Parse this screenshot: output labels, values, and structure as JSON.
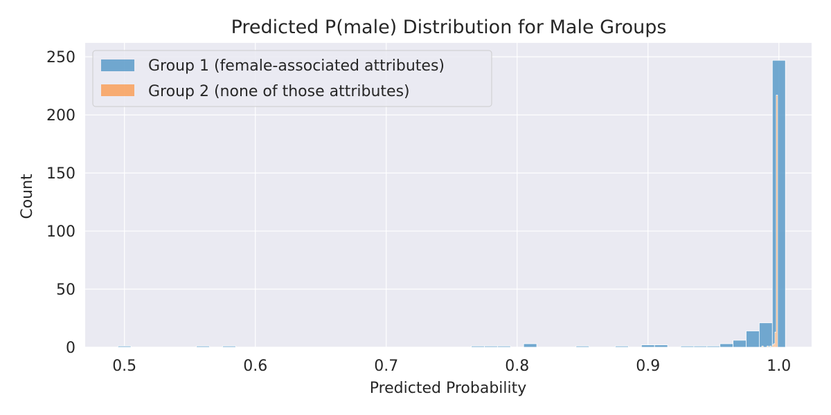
{
  "chart_data": {
    "type": "bar",
    "title": "Predicted P(male) Distribution for Male Groups",
    "xlabel": "Predicted Probability",
    "ylabel": "Count",
    "xlim": [
      0.47,
      1.025
    ],
    "ylim": [
      0,
      262
    ],
    "xticks": [
      0.5,
      0.6,
      0.7,
      0.8,
      0.9,
      1.0
    ],
    "xtick_labels": [
      "0.5",
      "0.6",
      "0.7",
      "0.8",
      "0.9",
      "1.0"
    ],
    "yticks": [
      0,
      50,
      100,
      150,
      200,
      250
    ],
    "ytick_labels": [
      "0",
      "50",
      "100",
      "150",
      "200",
      "250"
    ],
    "grid": true,
    "legend_position": "top-left",
    "series": [
      {
        "name": "Group 1 (female-associated attributes)",
        "color": "#5b9bc9",
        "bin_width": 0.01,
        "bins": [
          {
            "x0": 0.495,
            "count": 1
          },
          {
            "x0": 0.555,
            "count": 1
          },
          {
            "x0": 0.575,
            "count": 1
          },
          {
            "x0": 0.765,
            "count": 1
          },
          {
            "x0": 0.775,
            "count": 1
          },
          {
            "x0": 0.785,
            "count": 1
          },
          {
            "x0": 0.805,
            "count": 3
          },
          {
            "x0": 0.845,
            "count": 1
          },
          {
            "x0": 0.875,
            "count": 1
          },
          {
            "x0": 0.895,
            "count": 2
          },
          {
            "x0": 0.905,
            "count": 2
          },
          {
            "x0": 0.925,
            "count": 1
          },
          {
            "x0": 0.935,
            "count": 1
          },
          {
            "x0": 0.945,
            "count": 1
          },
          {
            "x0": 0.955,
            "count": 3
          },
          {
            "x0": 0.965,
            "count": 6
          },
          {
            "x0": 0.975,
            "count": 14
          },
          {
            "x0": 0.985,
            "count": 21
          },
          {
            "x0": 0.995,
            "count": 247
          }
        ]
      },
      {
        "name": "Group 2 (none of those attributes)",
        "color": "#f9a05a",
        "bin_width": 0.001,
        "bins": [
          {
            "x0": 0.987,
            "count": 1
          },
          {
            "x0": 0.991,
            "count": 1
          },
          {
            "x0": 0.993,
            "count": 1
          },
          {
            "x0": 0.995,
            "count": 2
          },
          {
            "x0": 0.996,
            "count": 3
          },
          {
            "x0": 0.997,
            "count": 13
          },
          {
            "x0": 0.998,
            "count": 217
          }
        ]
      }
    ]
  }
}
